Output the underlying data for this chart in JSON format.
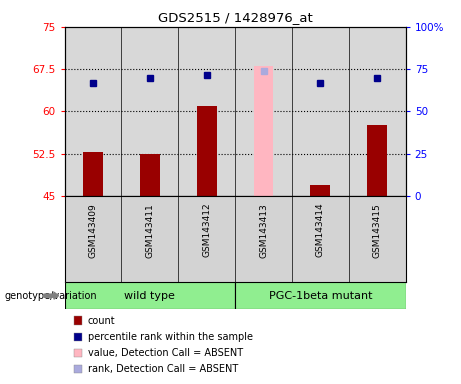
{
  "title": "GDS2515 / 1428976_at",
  "samples": [
    "GSM143409",
    "GSM143411",
    "GSM143412",
    "GSM143413",
    "GSM143414",
    "GSM143415"
  ],
  "bar_values": [
    52.8,
    52.5,
    61.0,
    null,
    47.0,
    57.5
  ],
  "bar_absent_value": 68.0,
  "bar_absent_index": 3,
  "bar_color": "#990000",
  "bar_absent_color": "#FFB6C1",
  "dot_values": [
    65.0,
    66.0,
    66.5,
    null,
    65.0,
    66.0
  ],
  "dot_absent_value": 67.2,
  "dot_absent_index": 3,
  "dot_color": "#00008B",
  "dot_absent_color": "#AAAADD",
  "ylim_left": [
    45,
    75
  ],
  "ylim_right": [
    0,
    100
  ],
  "yticks_left": [
    45,
    52.5,
    60,
    67.5,
    75
  ],
  "yticks_right": [
    0,
    25,
    50,
    75,
    100
  ],
  "ytick_labels_left": [
    "45",
    "52.5",
    "60",
    "67.5",
    "75"
  ],
  "ytick_labels_right": [
    "0",
    "25",
    "50",
    "75",
    "100%"
  ],
  "hlines": [
    52.5,
    60.0,
    67.5
  ],
  "group_wt_label": "wild type",
  "group_pgc_label": "PGC-1beta mutant",
  "group_color": "#90EE90",
  "group_label_prefix": "genotype/variation",
  "plot_bg_color": "#D8D8D8",
  "sample_box_color": "#D3D3D3",
  "bar_width": 0.35,
  "legend_items": [
    {
      "label": "count",
      "color": "#990000"
    },
    {
      "label": "percentile rank within the sample",
      "color": "#00008B"
    },
    {
      "label": "value, Detection Call = ABSENT",
      "color": "#FFB6C1"
    },
    {
      "label": "rank, Detection Call = ABSENT",
      "color": "#AAAADD"
    }
  ]
}
